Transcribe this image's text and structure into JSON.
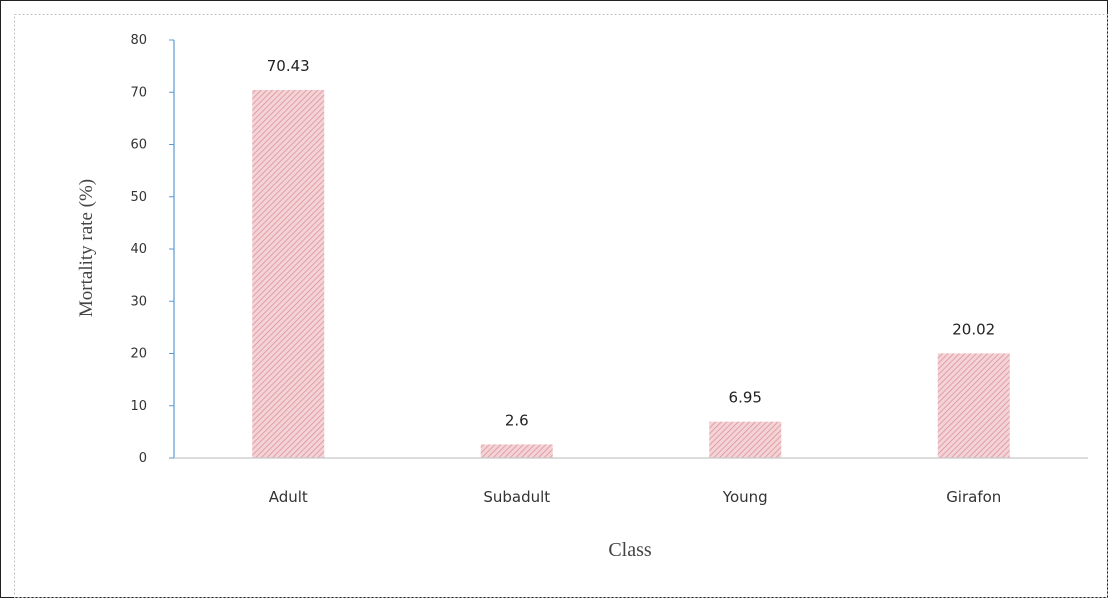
{
  "chart_data": {
    "type": "bar",
    "categories": [
      "Adult",
      "Subadult",
      "Young",
      "Girafon"
    ],
    "values": [
      70.43,
      2.6,
      6.95,
      20.02
    ],
    "data_labels": [
      "70.43",
      "2.6",
      "6.95",
      "20.02"
    ],
    "title": "",
    "xlabel": "Class",
    "ylabel": "Mortality rate (%)",
    "ylim": [
      0,
      80
    ],
    "yticks": [
      0,
      10,
      20,
      30,
      40,
      50,
      60,
      70,
      80
    ],
    "grid": false,
    "legend": "none",
    "colors": {
      "bar_fill": "#f3d3d6",
      "bar_hatch": "#d98a93",
      "y_axis": "#5b9bd5",
      "x_axis": "#c8c8c8"
    }
  }
}
